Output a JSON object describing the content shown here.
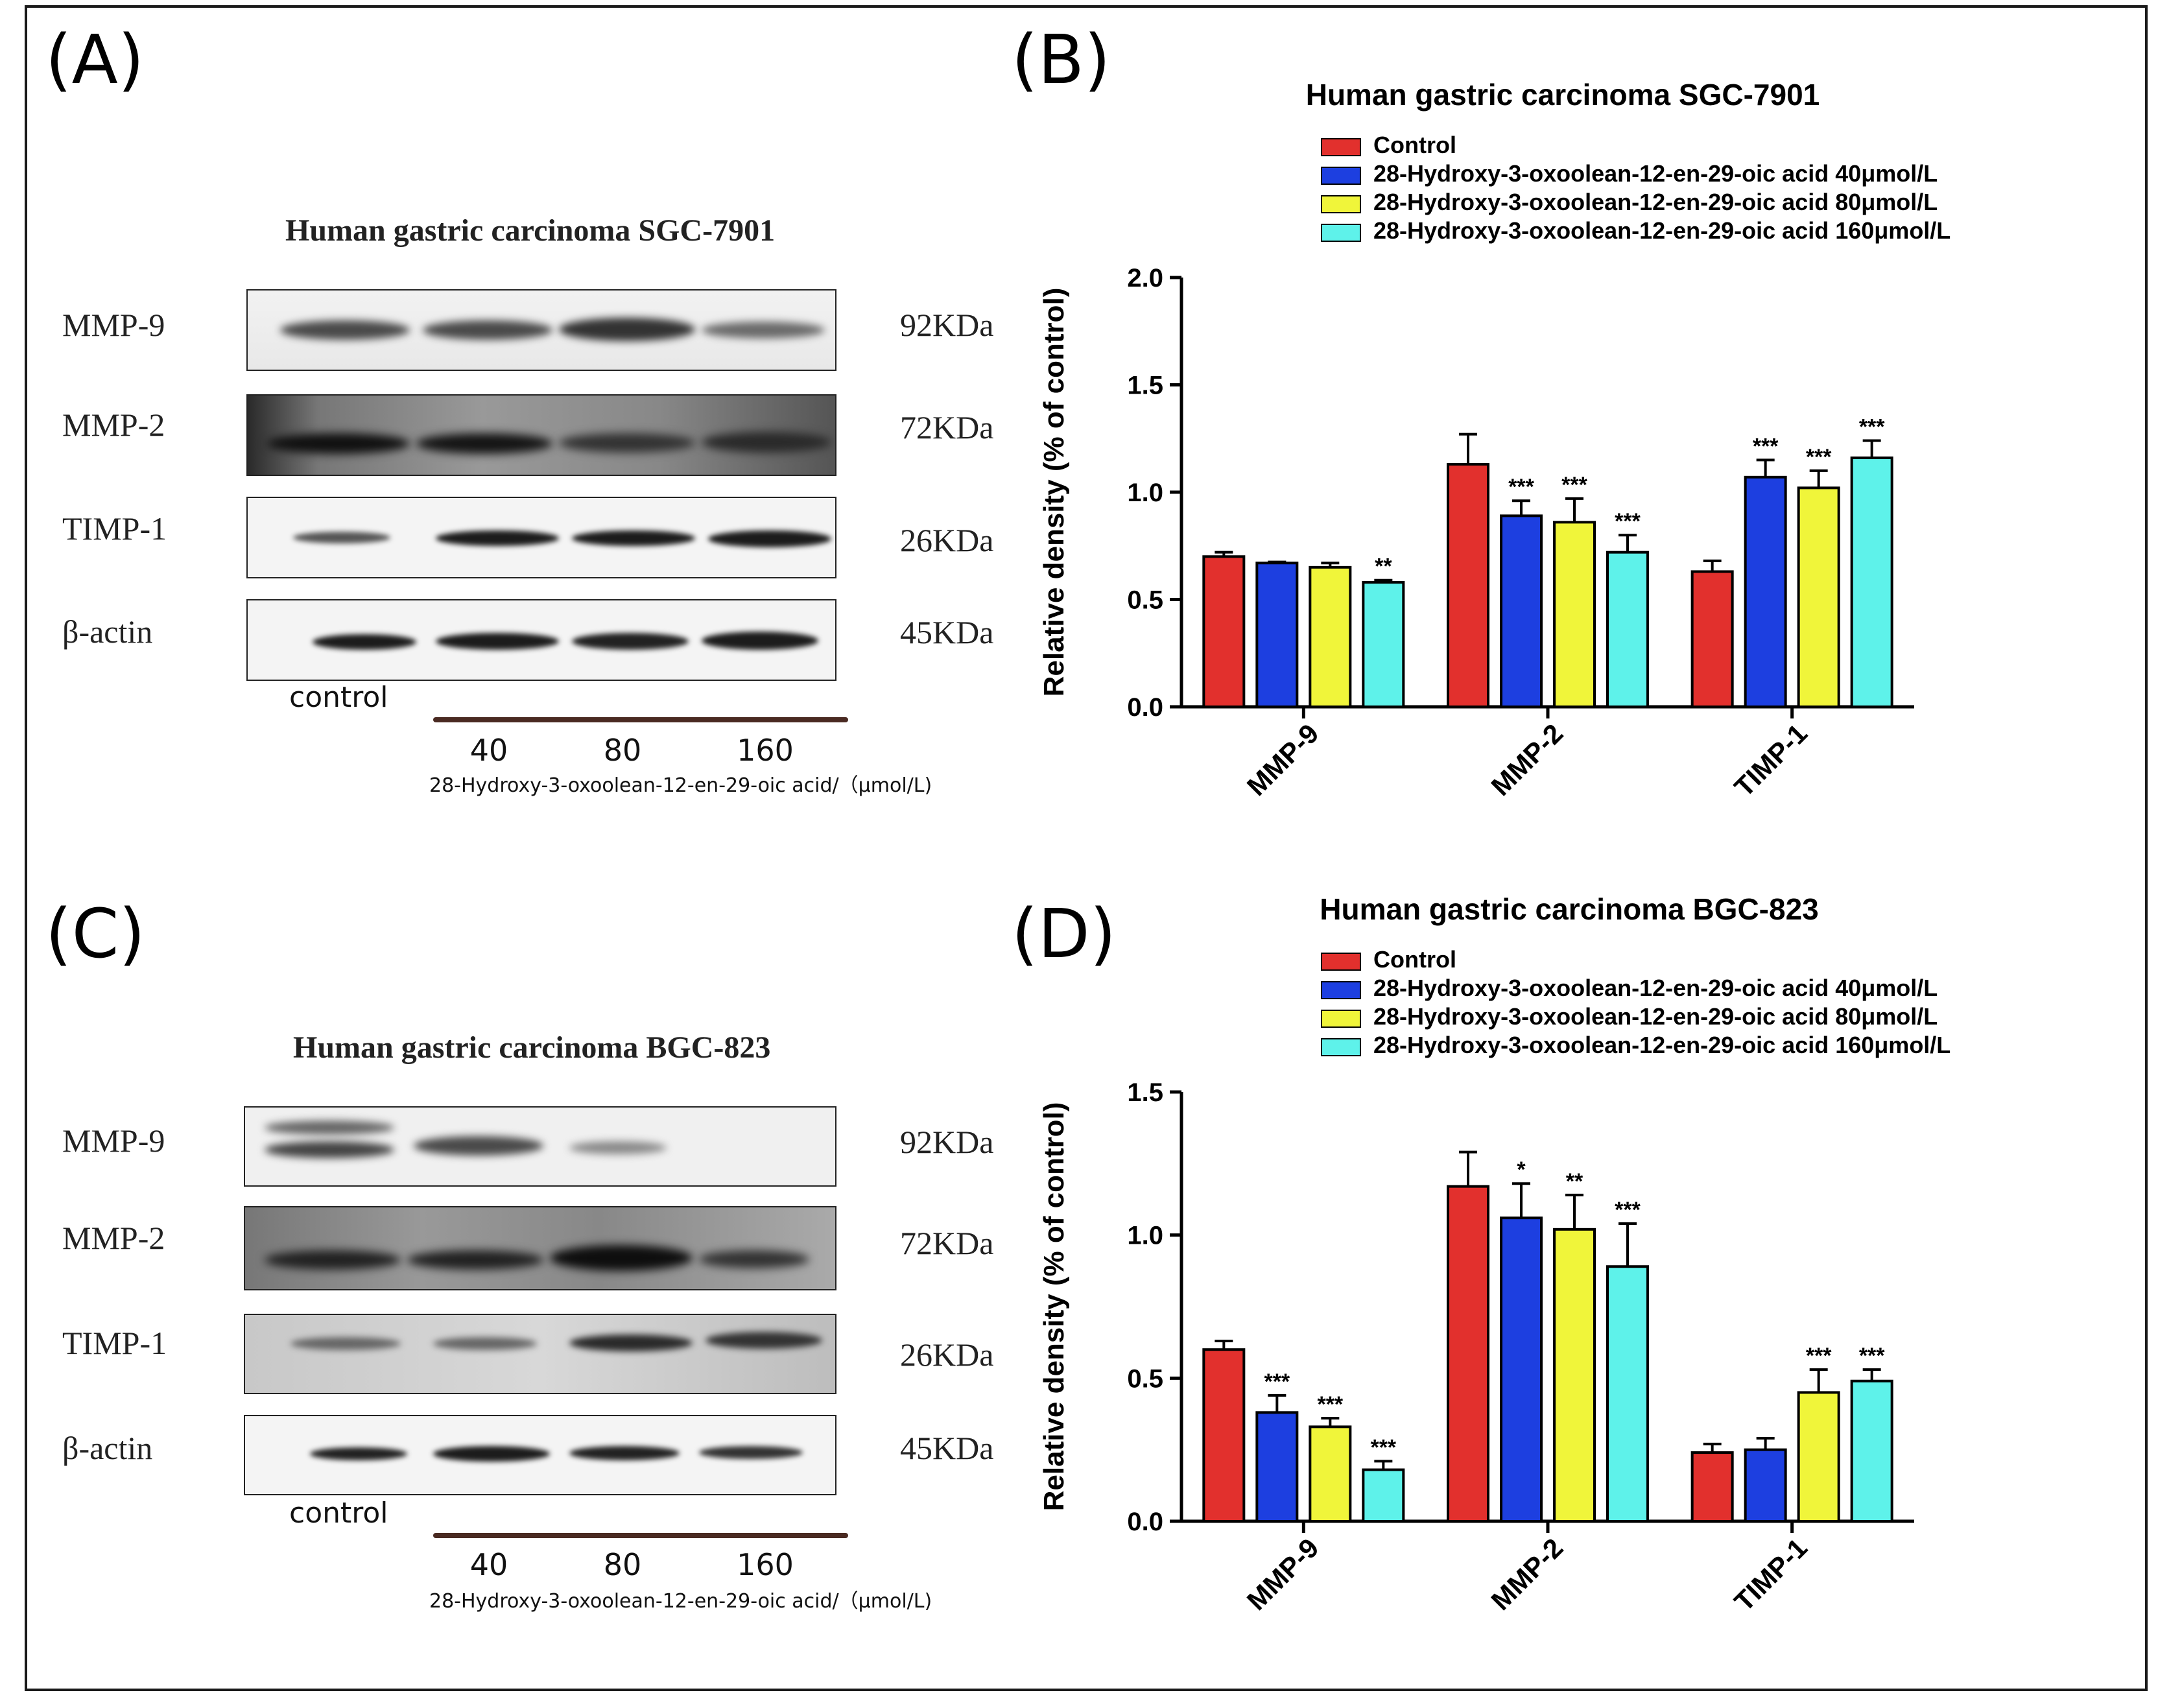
{
  "panels": {
    "A": {
      "letter": "(A)",
      "title": "Human gastric carcinoma SGC-7901"
    },
    "B": {
      "letter": "(B)"
    },
    "C": {
      "letter": "(C)",
      "title": "Human gastric carcinoma BGC-823"
    },
    "D": {
      "letter": "(D)"
    }
  },
  "blot_rows": [
    {
      "protein": "MMP-9",
      "kda": "92KDa"
    },
    {
      "protein": "MMP-2",
      "kda": "72KDa"
    },
    {
      "protein": "TIMP-1",
      "kda": "26KDa"
    },
    {
      "protein": "β-actin",
      "kda": "45KDa"
    }
  ],
  "blot_axis": {
    "control_label": "control",
    "doses": [
      "40",
      "80",
      "160"
    ],
    "compound_caption": "28-Hydroxy-3-oxoolean-12-en-29-oic acid/（μmol/L)"
  },
  "legend_entries": [
    "Control",
    "28-Hydroxy-3-oxoolean-12-en-29-oic acid   40μmol/L",
    "28-Hydroxy-3-oxoolean-12-en-29-oic acid   80μmol/L",
    "28-Hydroxy-3-oxoolean-12-en-29-oic acid  160μmol/L"
  ],
  "colors": {
    "control": "#e2302d",
    "dose40": "#1d3fe0",
    "dose80": "#f0f53a",
    "dose160": "#5ef2ea",
    "band": "#1c1c1c",
    "frame": "#1a1a1a"
  },
  "chart_data": [
    {
      "type": "bar",
      "title": "Human gastric carcinoma SGC-7901",
      "xlabel": "",
      "ylabel": "Relative density (% of control)",
      "categories": [
        "MMP-9",
        "MMP-2",
        "TIMP-1"
      ],
      "ylim": [
        0,
        2.0
      ],
      "yticks": [
        "0.0",
        "0.5",
        "1.0",
        "1.5",
        "2.0"
      ],
      "series": [
        {
          "name": "Control",
          "values": [
            0.7,
            1.13,
            0.63
          ],
          "errors": [
            0.02,
            0.14,
            0.05
          ],
          "sig": [
            "",
            "",
            ""
          ]
        },
        {
          "name": "28-Hydroxy-3-oxoolean-12-en-29-oic acid 40μmol/L",
          "values": [
            0.67,
            0.89,
            1.07
          ],
          "errors": [
            0.005,
            0.07,
            0.08
          ],
          "sig": [
            "",
            "***",
            "***"
          ]
        },
        {
          "name": "28-Hydroxy-3-oxoolean-12-en-29-oic acid 80μmol/L",
          "values": [
            0.65,
            0.86,
            1.02
          ],
          "errors": [
            0.02,
            0.11,
            0.08
          ],
          "sig": [
            "",
            "***",
            "***"
          ]
        },
        {
          "name": "28-Hydroxy-3-oxoolean-12-en-29-oic acid 160μmol/L",
          "values": [
            0.58,
            0.72,
            1.16
          ],
          "errors": [
            0.01,
            0.08,
            0.08
          ],
          "sig": [
            "**",
            "***",
            "***"
          ]
        }
      ]
    },
    {
      "type": "bar",
      "title": "Human gastric carcinoma BGC-823",
      "xlabel": "",
      "ylabel": "Relative density (% of control)",
      "categories": [
        "MMP-9",
        "MMP-2",
        "TIMP-1"
      ],
      "ylim": [
        0,
        1.5
      ],
      "yticks": [
        "0.0",
        "0.5",
        "1.0",
        "1.5"
      ],
      "series": [
        {
          "name": "Control",
          "values": [
            0.6,
            1.17,
            0.24
          ],
          "errors": [
            0.03,
            0.12,
            0.03
          ],
          "sig": [
            "",
            "",
            ""
          ]
        },
        {
          "name": "28-Hydroxy-3-oxoolean-12-en-29-oic acid 40μmol/L",
          "values": [
            0.38,
            1.06,
            0.25
          ],
          "errors": [
            0.06,
            0.12,
            0.04
          ],
          "sig": [
            "***",
            "*",
            ""
          ]
        },
        {
          "name": "28-Hydroxy-3-oxoolean-12-en-29-oic acid 80μmol/L",
          "values": [
            0.33,
            1.02,
            0.45
          ],
          "errors": [
            0.03,
            0.12,
            0.08
          ],
          "sig": [
            "***",
            "**",
            "***"
          ]
        },
        {
          "name": "28-Hydroxy-3-oxoolean-12-en-29-oic acid 160μmol/L",
          "values": [
            0.18,
            0.89,
            0.49
          ],
          "errors": [
            0.03,
            0.15,
            0.04
          ],
          "sig": [
            "***",
            "***",
            "***"
          ]
        }
      ]
    }
  ]
}
